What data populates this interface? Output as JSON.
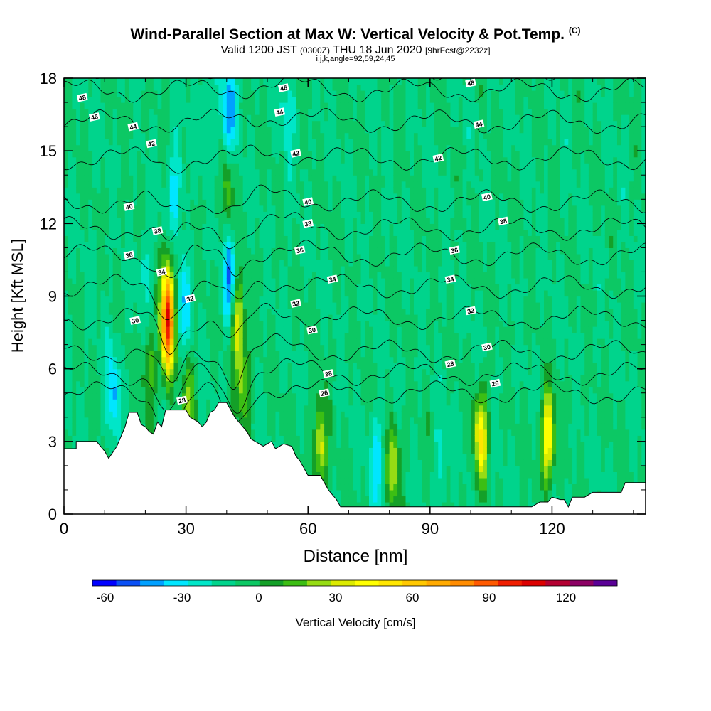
{
  "title": "Wind-Parallel Section at Max W: Vertical Velocity & Pot.Temp.",
  "title_mark": "(C)",
  "subtitle": {
    "valid": "Valid 1200 JST",
    "utc": "(0300Z)",
    "date": "THU 18 Jun 2020",
    "fcst": "[9hrFcst@2232z]"
  },
  "params": "i,j,k,angle=92,59,24,45",
  "chart_data": {
    "type": "heatmap",
    "xlabel": "Distance [nm]",
    "ylabel": "Height [Kft MSL]",
    "xlim": [
      0,
      143
    ],
    "ylim": [
      0,
      18
    ],
    "x_ticks": [
      "0",
      "30",
      "60",
      "90",
      "120"
    ],
    "y_ticks": [
      "0",
      "3",
      "6",
      "9",
      "12",
      "15",
      "18"
    ],
    "colorbar": {
      "label": "Vertical Velocity [cm/s]",
      "ticks": [
        "-60",
        "-30",
        "0",
        "30",
        "60",
        "90",
        "120"
      ],
      "min": -65,
      "max": 140,
      "step": 10,
      "colors": [
        "#0000ff",
        "#0a50f5",
        "#00a0ff",
        "#00e6ff",
        "#00e6c8",
        "#00d48c",
        "#0cc864",
        "#14a028",
        "#3cbe14",
        "#96dc14",
        "#dceb00",
        "#ffff00",
        "#ffe600",
        "#ffc800",
        "#ffaa00",
        "#ff8c00",
        "#ff5a00",
        "#f01e00",
        "#dc0000",
        "#b40032",
        "#8c0064",
        "#5a0096"
      ]
    },
    "terrain": [
      [
        0,
        2.7
      ],
      [
        3,
        2.7
      ],
      [
        3,
        3.0
      ],
      [
        8,
        3.0
      ],
      [
        10,
        2.6
      ],
      [
        11,
        2.3
      ],
      [
        13,
        2.8
      ],
      [
        15,
        3.6
      ],
      [
        16,
        4.2
      ],
      [
        18,
        4.2
      ],
      [
        19,
        3.7
      ],
      [
        20,
        3.6
      ],
      [
        21,
        3.4
      ],
      [
        22,
        3.3
      ],
      [
        23,
        3.8
      ],
      [
        24,
        3.6
      ],
      [
        25,
        4.3
      ],
      [
        28,
        4.3
      ],
      [
        30,
        4.3
      ],
      [
        31,
        4.0
      ],
      [
        33,
        3.8
      ],
      [
        34,
        3.6
      ],
      [
        35,
        3.8
      ],
      [
        36,
        4.2
      ],
      [
        37,
        4.3
      ],
      [
        38,
        4.6
      ],
      [
        40,
        4.6
      ],
      [
        41,
        4.3
      ],
      [
        42,
        4.0
      ],
      [
        44,
        3.6
      ],
      [
        45,
        3.4
      ],
      [
        46,
        3.1
      ],
      [
        47,
        3.0
      ],
      [
        48,
        2.9
      ],
      [
        49,
        2.8
      ],
      [
        51,
        3.0
      ],
      [
        52,
        2.7
      ],
      [
        54,
        2.9
      ],
      [
        56,
        2.8
      ],
      [
        57,
        2.4
      ],
      [
        58,
        2.2
      ],
      [
        59,
        1.9
      ],
      [
        60,
        1.6
      ],
      [
        63,
        1.6
      ],
      [
        64,
        1.3
      ],
      [
        65,
        1.0
      ],
      [
        66,
        0.8
      ],
      [
        67,
        0.6
      ],
      [
        68,
        0.3
      ],
      [
        80,
        0.3
      ],
      [
        90,
        0.3
      ],
      [
        100,
        0.3
      ],
      [
        115,
        0.3
      ],
      [
        117,
        0.5
      ],
      [
        119,
        0.5
      ],
      [
        120,
        0.7
      ],
      [
        122,
        0.6
      ],
      [
        123,
        0.6
      ],
      [
        124,
        0.3
      ],
      [
        125,
        0.7
      ],
      [
        128,
        0.7
      ],
      [
        130,
        0.9
      ],
      [
        137,
        0.9
      ],
      [
        138,
        1.3
      ],
      [
        143,
        1.3
      ]
    ],
    "updrafts": [
      {
        "x": 25.5,
        "y": 8.0,
        "peak": 125
      },
      {
        "x": 42.5,
        "y": 8.2,
        "peak": 55
      },
      {
        "x": 21.0,
        "y": 6.0,
        "peak": 25
      },
      {
        "x": 30.5,
        "y": 4.8,
        "peak": 30
      },
      {
        "x": 44.0,
        "y": 5.5,
        "peak": 35
      },
      {
        "x": 63.0,
        "y": 2.8,
        "peak": 45
      },
      {
        "x": 81.0,
        "y": 2.0,
        "peak": 40
      },
      {
        "x": 102.5,
        "y": 3.2,
        "peak": 60
      },
      {
        "x": 119.0,
        "y": 3.2,
        "peak": 65
      },
      {
        "x": 40.5,
        "y": 13.5,
        "peak": 25
      },
      {
        "x": 91.0,
        "y": 2.2,
        "peak": 12
      }
    ],
    "downdrafts": [
      {
        "x": 41.0,
        "y": 9.6,
        "peak": -45
      },
      {
        "x": 40.5,
        "y": 16.5,
        "peak": -40
      },
      {
        "x": 27.5,
        "y": 13.5,
        "peak": -25
      },
      {
        "x": 12.0,
        "y": 5.0,
        "peak": -30
      },
      {
        "x": 29.5,
        "y": 8.5,
        "peak": -25
      },
      {
        "x": 77.0,
        "y": 2.2,
        "peak": -25
      },
      {
        "x": 92.0,
        "y": 2.0,
        "peak": -22
      },
      {
        "x": 55.0,
        "y": 16.5,
        "peak": -15
      },
      {
        "x": 35.0,
        "y": 16.5,
        "peak": -15
      },
      {
        "x": 20.0,
        "y": 10.0,
        "peak": -12
      }
    ],
    "theta_levels": [
      26,
      28,
      30,
      32,
      34,
      36,
      38,
      40,
      42,
      44,
      46,
      48
    ],
    "theta_level_height": {
      "26": 5.0,
      "28": 5.8,
      "30": 6.7,
      "32": 8.1,
      "34": 9.4,
      "36": 10.7,
      "38": 11.8,
      "40": 12.9,
      "42": 14.7,
      "44": 16.2,
      "46": 17.5,
      "48": 18.4
    },
    "theta_labels": [
      {
        "text": "48",
        "x": 4.5,
        "y": 17.2
      },
      {
        "text": "46",
        "x": 7.5,
        "y": 16.4
      },
      {
        "text": "44",
        "x": 17,
        "y": 16.0
      },
      {
        "text": "42",
        "x": 21.5,
        "y": 15.3
      },
      {
        "text": "40",
        "x": 16,
        "y": 12.7
      },
      {
        "text": "38",
        "x": 23,
        "y": 11.7
      },
      {
        "text": "36",
        "x": 16,
        "y": 10.7
      },
      {
        "text": "34",
        "x": 24,
        "y": 10.0
      },
      {
        "text": "32",
        "x": 31,
        "y": 8.9
      },
      {
        "text": "30",
        "x": 17.5,
        "y": 8.0
      },
      {
        "text": "28",
        "x": 29,
        "y": 4.7
      },
      {
        "text": "46",
        "x": 54,
        "y": 17.6
      },
      {
        "text": "44",
        "x": 53,
        "y": 16.6
      },
      {
        "text": "42",
        "x": 57,
        "y": 14.9
      },
      {
        "text": "40",
        "x": 60,
        "y": 12.9
      },
      {
        "text": "38",
        "x": 60,
        "y": 12.0
      },
      {
        "text": "36",
        "x": 58,
        "y": 10.9
      },
      {
        "text": "34",
        "x": 66,
        "y": 9.7
      },
      {
        "text": "32",
        "x": 57,
        "y": 8.7
      },
      {
        "text": "30",
        "x": 61,
        "y": 7.6
      },
      {
        "text": "28",
        "x": 65,
        "y": 5.8
      },
      {
        "text": "26",
        "x": 64,
        "y": 5.0
      },
      {
        "text": "46",
        "x": 100,
        "y": 17.8
      },
      {
        "text": "44",
        "x": 102,
        "y": 16.1
      },
      {
        "text": "42",
        "x": 92,
        "y": 14.7
      },
      {
        "text": "40",
        "x": 104,
        "y": 13.1
      },
      {
        "text": "38",
        "x": 108,
        "y": 12.1
      },
      {
        "text": "36",
        "x": 96,
        "y": 10.9
      },
      {
        "text": "34",
        "x": 95,
        "y": 9.7
      },
      {
        "text": "32",
        "x": 100,
        "y": 8.4
      },
      {
        "text": "30",
        "x": 104,
        "y": 6.9
      },
      {
        "text": "28",
        "x": 95,
        "y": 6.2
      },
      {
        "text": "26",
        "x": 106,
        "y": 5.4
      }
    ]
  }
}
